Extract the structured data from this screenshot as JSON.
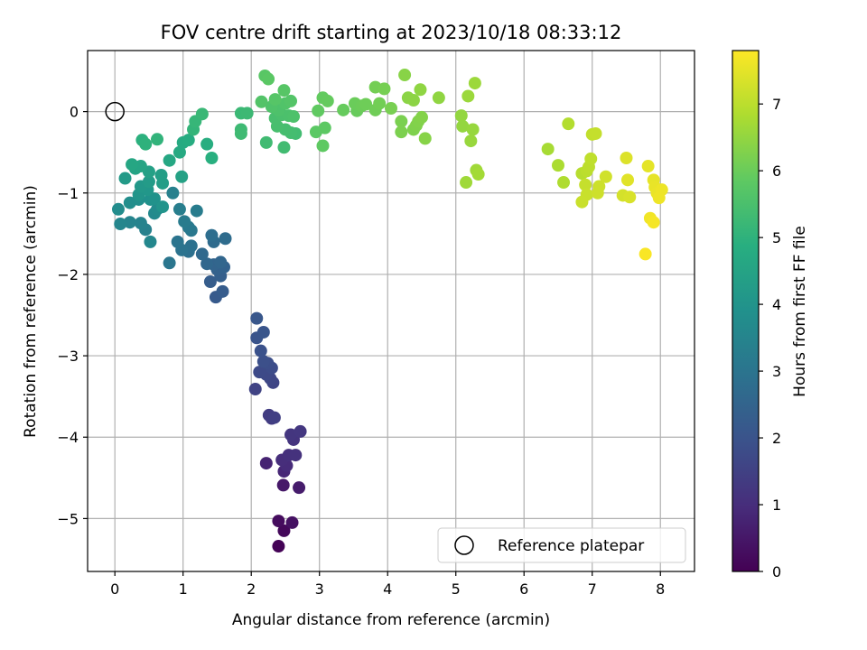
{
  "chart_data": {
    "type": "scatter",
    "title": "FOV centre drift starting at 2023/10/18 08:33:12",
    "xlabel": "Angular distance from reference (arcmin)",
    "ylabel": "Rotation from reference (arcmin)",
    "colorbar_label": "Hours from first FF file",
    "colormap": "viridis",
    "xlim": [
      -0.4,
      8.5
    ],
    "ylim": [
      -5.65,
      0.75
    ],
    "clim": [
      0,
      7.8
    ],
    "x_ticks": [
      0,
      1,
      2,
      3,
      4,
      5,
      6,
      7,
      8
    ],
    "y_ticks": [
      0,
      -1,
      -2,
      -3,
      -4,
      -5
    ],
    "colorbar_ticks": [
      0,
      1,
      2,
      3,
      4,
      5,
      6,
      7
    ],
    "grid": true,
    "legend": {
      "placement": "lower-right",
      "entries": [
        "Reference platepar"
      ]
    },
    "reference_point": {
      "x": 0,
      "y": 0
    },
    "points": [
      {
        "x": 2.4,
        "y": -5.34,
        "h": 0.05
      },
      {
        "x": 2.48,
        "y": -5.15,
        "h": 0.15
      },
      {
        "x": 2.4,
        "y": -5.03,
        "h": 0.25
      },
      {
        "x": 2.6,
        "y": -5.05,
        "h": 0.35
      },
      {
        "x": 2.47,
        "y": -4.59,
        "h": 0.5
      },
      {
        "x": 2.7,
        "y": -4.62,
        "h": 0.6
      },
      {
        "x": 2.22,
        "y": -4.32,
        "h": 0.75
      },
      {
        "x": 2.48,
        "y": -4.42,
        "h": 0.85
      },
      {
        "x": 2.52,
        "y": -4.35,
        "h": 0.95
      },
      {
        "x": 2.45,
        "y": -4.28,
        "h": 1.0
      },
      {
        "x": 2.55,
        "y": -4.22,
        "h": 1.05
      },
      {
        "x": 2.65,
        "y": -4.22,
        "h": 1.1
      },
      {
        "x": 2.62,
        "y": -4.03,
        "h": 1.15
      },
      {
        "x": 2.58,
        "y": -3.97,
        "h": 1.2
      },
      {
        "x": 2.72,
        "y": -3.93,
        "h": 1.25
      },
      {
        "x": 2.3,
        "y": -3.77,
        "h": 1.35
      },
      {
        "x": 2.26,
        "y": -3.73,
        "h": 1.4
      },
      {
        "x": 2.34,
        "y": -3.76,
        "h": 1.45
      },
      {
        "x": 2.06,
        "y": -3.41,
        "h": 1.55
      },
      {
        "x": 2.32,
        "y": -3.33,
        "h": 1.6
      },
      {
        "x": 2.28,
        "y": -3.28,
        "h": 1.65
      },
      {
        "x": 2.22,
        "y": -3.23,
        "h": 1.7
      },
      {
        "x": 2.12,
        "y": -3.2,
        "h": 1.75
      },
      {
        "x": 2.3,
        "y": -3.15,
        "h": 1.8
      },
      {
        "x": 2.24,
        "y": -3.09,
        "h": 1.85
      },
      {
        "x": 2.18,
        "y": -3.07,
        "h": 1.9
      },
      {
        "x": 2.14,
        "y": -2.94,
        "h": 1.95
      },
      {
        "x": 2.08,
        "y": -2.78,
        "h": 2.0
      },
      {
        "x": 2.18,
        "y": -2.71,
        "h": 2.05
      },
      {
        "x": 2.08,
        "y": -2.54,
        "h": 2.1
      },
      {
        "x": 1.48,
        "y": -2.28,
        "h": 2.2
      },
      {
        "x": 1.58,
        "y": -2.21,
        "h": 2.25
      },
      {
        "x": 1.4,
        "y": -2.09,
        "h": 2.3
      },
      {
        "x": 1.55,
        "y": -2.02,
        "h": 2.35
      },
      {
        "x": 1.5,
        "y": -1.94,
        "h": 2.4
      },
      {
        "x": 1.6,
        "y": -1.91,
        "h": 2.45
      },
      {
        "x": 1.45,
        "y": -1.88,
        "h": 2.5
      },
      {
        "x": 1.55,
        "y": -1.85,
        "h": 2.55
      },
      {
        "x": 1.35,
        "y": -1.87,
        "h": 2.6
      },
      {
        "x": 1.28,
        "y": -1.75,
        "h": 2.65
      },
      {
        "x": 1.45,
        "y": -1.6,
        "h": 2.7
      },
      {
        "x": 1.62,
        "y": -1.56,
        "h": 2.75
      },
      {
        "x": 1.42,
        "y": -1.52,
        "h": 2.8
      },
      {
        "x": 1.08,
        "y": -1.72,
        "h": 2.85
      },
      {
        "x": 1.12,
        "y": -1.65,
        "h": 2.9
      },
      {
        "x": 0.98,
        "y": -1.7,
        "h": 2.95
      },
      {
        "x": 0.92,
        "y": -1.6,
        "h": 3.0
      },
      {
        "x": 0.8,
        "y": -1.86,
        "h": 3.05
      },
      {
        "x": 1.12,
        "y": -1.46,
        "h": 3.1
      },
      {
        "x": 1.08,
        "y": -1.42,
        "h": 3.15
      },
      {
        "x": 1.02,
        "y": -1.35,
        "h": 3.2
      },
      {
        "x": 1.2,
        "y": -1.22,
        "h": 3.25
      },
      {
        "x": 0.95,
        "y": -1.2,
        "h": 3.3
      },
      {
        "x": 0.85,
        "y": -1.0,
        "h": 3.35
      },
      {
        "x": 0.45,
        "y": -1.45,
        "h": 3.4
      },
      {
        "x": 0.38,
        "y": -1.37,
        "h": 3.45
      },
      {
        "x": 0.22,
        "y": -1.36,
        "h": 3.5
      },
      {
        "x": 0.08,
        "y": -1.38,
        "h": 3.55
      },
      {
        "x": 0.52,
        "y": -1.6,
        "h": 3.6
      },
      {
        "x": 0.58,
        "y": -1.25,
        "h": 3.65
      },
      {
        "x": 0.62,
        "y": -1.2,
        "h": 3.7
      },
      {
        "x": 0.05,
        "y": -1.2,
        "h": 3.75
      },
      {
        "x": 0.22,
        "y": -1.12,
        "h": 3.8
      },
      {
        "x": 0.35,
        "y": -1.08,
        "h": 3.85
      },
      {
        "x": 0.52,
        "y": -1.08,
        "h": 3.9
      },
      {
        "x": 0.58,
        "y": -1.07,
        "h": 3.95
      },
      {
        "x": 0.7,
        "y": -1.17,
        "h": 4.0
      },
      {
        "x": 0.35,
        "y": -1.02,
        "h": 4.05
      },
      {
        "x": 0.48,
        "y": -0.96,
        "h": 4.1
      },
      {
        "x": 0.38,
        "y": -0.92,
        "h": 4.15
      },
      {
        "x": 0.15,
        "y": -0.82,
        "h": 4.2
      },
      {
        "x": 0.5,
        "y": -0.86,
        "h": 4.25
      },
      {
        "x": 0.7,
        "y": -0.88,
        "h": 4.3
      },
      {
        "x": 0.68,
        "y": -0.78,
        "h": 4.35
      },
      {
        "x": 0.5,
        "y": -0.74,
        "h": 4.4
      },
      {
        "x": 0.98,
        "y": -0.8,
        "h": 4.45
      },
      {
        "x": 0.3,
        "y": -0.7,
        "h": 4.5
      },
      {
        "x": 0.38,
        "y": -0.67,
        "h": 4.55
      },
      {
        "x": 0.25,
        "y": -0.65,
        "h": 4.6
      },
      {
        "x": 0.8,
        "y": -0.6,
        "h": 4.65
      },
      {
        "x": 0.95,
        "y": -0.5,
        "h": 4.7
      },
      {
        "x": 1.0,
        "y": -0.38,
        "h": 4.75
      },
      {
        "x": 1.08,
        "y": -0.35,
        "h": 4.8
      },
      {
        "x": 1.35,
        "y": -0.4,
        "h": 4.85
      },
      {
        "x": 1.42,
        "y": -0.57,
        "h": 4.9
      },
      {
        "x": 0.4,
        "y": -0.35,
        "h": 4.95
      },
      {
        "x": 0.45,
        "y": -0.4,
        "h": 5.0
      },
      {
        "x": 0.62,
        "y": -0.34,
        "h": 5.05
      },
      {
        "x": 1.15,
        "y": -0.22,
        "h": 5.1
      },
      {
        "x": 1.18,
        "y": -0.12,
        "h": 5.15
      },
      {
        "x": 1.28,
        "y": -0.03,
        "h": 5.2
      },
      {
        "x": 1.85,
        "y": -0.02,
        "h": 5.22
      },
      {
        "x": 1.94,
        "y": -0.02,
        "h": 5.25
      },
      {
        "x": 1.85,
        "y": -0.22,
        "h": 5.27
      },
      {
        "x": 1.85,
        "y": -0.27,
        "h": 5.3
      },
      {
        "x": 2.22,
        "y": -0.38,
        "h": 5.32
      },
      {
        "x": 2.48,
        "y": -0.44,
        "h": 5.35
      },
      {
        "x": 2.65,
        "y": -0.27,
        "h": 5.37
      },
      {
        "x": 2.58,
        "y": -0.26,
        "h": 5.4
      },
      {
        "x": 2.5,
        "y": -0.22,
        "h": 5.42
      },
      {
        "x": 2.38,
        "y": -0.18,
        "h": 5.45
      },
      {
        "x": 2.35,
        "y": -0.08,
        "h": 5.47
      },
      {
        "x": 2.45,
        "y": -0.04,
        "h": 5.5
      },
      {
        "x": 2.55,
        "y": -0.05,
        "h": 5.52
      },
      {
        "x": 2.62,
        "y": -0.06,
        "h": 5.55
      },
      {
        "x": 2.4,
        "y": 0.02,
        "h": 5.57
      },
      {
        "x": 2.3,
        "y": 0.06,
        "h": 5.6
      },
      {
        "x": 2.5,
        "y": 0.1,
        "h": 5.62
      },
      {
        "x": 2.15,
        "y": 0.12,
        "h": 5.65
      },
      {
        "x": 2.58,
        "y": 0.13,
        "h": 5.67
      },
      {
        "x": 2.35,
        "y": 0.15,
        "h": 5.7
      },
      {
        "x": 2.48,
        "y": 0.26,
        "h": 5.72
      },
      {
        "x": 2.2,
        "y": 0.44,
        "h": 5.75
      },
      {
        "x": 2.25,
        "y": 0.4,
        "h": 5.77
      },
      {
        "x": 2.95,
        "y": -0.25,
        "h": 5.8
      },
      {
        "x": 3.08,
        "y": -0.2,
        "h": 5.82
      },
      {
        "x": 3.05,
        "y": -0.42,
        "h": 5.85
      },
      {
        "x": 2.98,
        "y": 0.01,
        "h": 5.87
      },
      {
        "x": 3.05,
        "y": 0.17,
        "h": 5.9
      },
      {
        "x": 3.12,
        "y": 0.13,
        "h": 5.92
      },
      {
        "x": 3.35,
        "y": 0.02,
        "h": 5.95
      },
      {
        "x": 3.55,
        "y": 0.01,
        "h": 5.97
      },
      {
        "x": 3.52,
        "y": 0.1,
        "h": 6.0
      },
      {
        "x": 3.62,
        "y": 0.07,
        "h": 6.02
      },
      {
        "x": 3.68,
        "y": 0.09,
        "h": 6.05
      },
      {
        "x": 3.82,
        "y": 0.02,
        "h": 6.07
      },
      {
        "x": 3.88,
        "y": 0.1,
        "h": 6.1
      },
      {
        "x": 3.82,
        "y": 0.3,
        "h": 6.12
      },
      {
        "x": 3.95,
        "y": 0.28,
        "h": 6.15
      },
      {
        "x": 4.05,
        "y": 0.04,
        "h": 6.17
      },
      {
        "x": 4.2,
        "y": -0.12,
        "h": 6.2
      },
      {
        "x": 4.2,
        "y": -0.25,
        "h": 6.22
      },
      {
        "x": 4.38,
        "y": -0.22,
        "h": 6.25
      },
      {
        "x": 4.42,
        "y": -0.17,
        "h": 6.27
      },
      {
        "x": 4.45,
        "y": -0.12,
        "h": 6.3
      },
      {
        "x": 4.5,
        "y": -0.07,
        "h": 6.32
      },
      {
        "x": 4.55,
        "y": -0.33,
        "h": 6.35
      },
      {
        "x": 4.25,
        "y": 0.45,
        "h": 6.37
      },
      {
        "x": 4.3,
        "y": 0.17,
        "h": 6.4
      },
      {
        "x": 4.38,
        "y": 0.14,
        "h": 6.42
      },
      {
        "x": 4.48,
        "y": 0.27,
        "h": 6.45
      },
      {
        "x": 4.75,
        "y": 0.17,
        "h": 6.47
      },
      {
        "x": 5.08,
        "y": -0.05,
        "h": 6.5
      },
      {
        "x": 5.1,
        "y": -0.18,
        "h": 6.52
      },
      {
        "x": 5.25,
        "y": -0.22,
        "h": 6.55
      },
      {
        "x": 5.22,
        "y": -0.36,
        "h": 6.57
      },
      {
        "x": 5.18,
        "y": 0.19,
        "h": 6.6
      },
      {
        "x": 5.28,
        "y": 0.35,
        "h": 6.62
      },
      {
        "x": 5.15,
        "y": -0.87,
        "h": 6.65
      },
      {
        "x": 5.3,
        "y": -0.72,
        "h": 6.67
      },
      {
        "x": 5.33,
        "y": -0.77,
        "h": 6.7
      },
      {
        "x": 6.35,
        "y": -0.46,
        "h": 6.75
      },
      {
        "x": 6.5,
        "y": -0.66,
        "h": 6.8
      },
      {
        "x": 6.58,
        "y": -0.87,
        "h": 6.85
      },
      {
        "x": 6.65,
        "y": -0.15,
        "h": 6.9
      },
      {
        "x": 6.85,
        "y": -0.76,
        "h": 6.95
      },
      {
        "x": 6.92,
        "y": -0.73,
        "h": 7.0
      },
      {
        "x": 6.95,
        "y": -0.68,
        "h": 7.02
      },
      {
        "x": 6.98,
        "y": -0.58,
        "h": 7.05
      },
      {
        "x": 7.0,
        "y": -0.28,
        "h": 7.07
      },
      {
        "x": 7.05,
        "y": -0.27,
        "h": 7.1
      },
      {
        "x": 6.9,
        "y": -0.9,
        "h": 7.12
      },
      {
        "x": 6.92,
        "y": -1.02,
        "h": 7.15
      },
      {
        "x": 6.85,
        "y": -1.11,
        "h": 7.17
      },
      {
        "x": 7.1,
        "y": -0.92,
        "h": 7.2
      },
      {
        "x": 7.08,
        "y": -1.0,
        "h": 7.22
      },
      {
        "x": 7.2,
        "y": -0.8,
        "h": 7.25
      },
      {
        "x": 7.45,
        "y": -1.03,
        "h": 7.3
      },
      {
        "x": 7.55,
        "y": -1.05,
        "h": 7.35
      },
      {
        "x": 7.5,
        "y": -0.57,
        "h": 7.4
      },
      {
        "x": 7.52,
        "y": -0.84,
        "h": 7.45
      },
      {
        "x": 7.82,
        "y": -0.67,
        "h": 7.5
      },
      {
        "x": 7.9,
        "y": -0.84,
        "h": 7.52
      },
      {
        "x": 7.92,
        "y": -0.93,
        "h": 7.55
      },
      {
        "x": 7.95,
        "y": -1.0,
        "h": 7.57
      },
      {
        "x": 8.02,
        "y": -0.96,
        "h": 7.6
      },
      {
        "x": 7.98,
        "y": -1.06,
        "h": 7.62
      },
      {
        "x": 7.85,
        "y": -1.31,
        "h": 7.65
      },
      {
        "x": 7.9,
        "y": -1.36,
        "h": 7.7
      },
      {
        "x": 7.78,
        "y": -1.75,
        "h": 7.75
      }
    ]
  }
}
